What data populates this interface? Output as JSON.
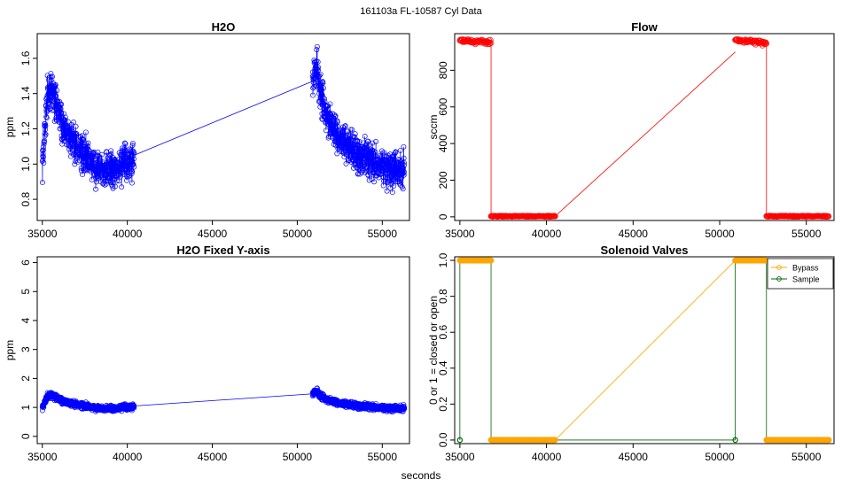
{
  "figure": {
    "suptitle": "161103a   FL-10587  Cyl Data",
    "xlabel": "seconds"
  },
  "colors": {
    "h2o": "#0000ff",
    "flow": "#ff0000",
    "bypass": "#ffa500",
    "sample": "#006400",
    "axis": "#000000"
  },
  "chart_data": [
    {
      "id": "h2o",
      "type": "line",
      "title": "H2O",
      "xlabel": "",
      "ylabel": "ppm",
      "xlim": [
        34700,
        56600
      ],
      "ylim": [
        0.68,
        1.74
      ],
      "x_ticks": [
        35000,
        40000,
        45000,
        50000,
        55000
      ],
      "y_ticks": [
        0.8,
        1.0,
        1.2,
        1.4,
        1.6
      ],
      "y_tick_labels": [
        "0.8",
        "1.0",
        "1.2",
        "1.4",
        "1.6"
      ],
      "series": [
        {
          "name": "H2O",
          "segments": [
            {
              "x_range": [
                35000,
                40400
              ],
              "shape": [
                [
                  35000,
                  0.95
                ],
                [
                  35300,
                  1.42
                ],
                [
                  35600,
                  1.42
                ],
                [
                  36200,
                  1.22
                ],
                [
                  37000,
                  1.1
                ],
                [
                  38000,
                  1.0
                ],
                [
                  39000,
                  0.97
                ],
                [
                  40400,
                  1.02
                ]
              ],
              "noise": 0.2
            },
            {
              "x_range": [
                50900,
                56300
              ],
              "shape": [
                [
                  50900,
                  1.45
                ],
                [
                  51100,
                  1.55
                ],
                [
                  51600,
                  1.3
                ],
                [
                  52500,
                  1.15
                ],
                [
                  53500,
                  1.05
                ],
                [
                  54500,
                  1.0
                ],
                [
                  56300,
                  0.97
                ]
              ],
              "noise": 0.2
            }
          ],
          "bridge": [
            [
              40400,
              1.05
            ],
            [
              50900,
              1.47
            ]
          ]
        }
      ]
    },
    {
      "id": "flow",
      "type": "line",
      "title": "Flow",
      "xlabel": "",
      "ylabel": "sccm",
      "xlim": [
        34700,
        56600
      ],
      "ylim": [
        -20,
        1000
      ],
      "x_ticks": [
        35000,
        40000,
        45000,
        50000,
        55000
      ],
      "y_ticks": [
        0,
        200,
        400,
        600,
        800
      ],
      "y_tick_labels": [
        "0",
        "200",
        "400",
        "600",
        "800"
      ],
      "series": [
        {
          "name": "Flow",
          "segments": [
            {
              "x_range": [
                35000,
                36800
              ],
              "shape": [
                [
                  35000,
                  960
                ],
                [
                  36800,
                  955
                ]
              ],
              "noise": 25
            },
            {
              "x_range": [
                36800,
                40500
              ],
              "shape": [
                [
                  36800,
                  3
                ],
                [
                  40500,
                  3
                ]
              ],
              "noise": 4
            },
            {
              "x_range": [
                50900,
                52700
              ],
              "shape": [
                [
                  50900,
                  965
                ],
                [
                  52700,
                  950
                ]
              ],
              "noise": 25
            },
            {
              "x_range": [
                52700,
                56300
              ],
              "shape": [
                [
                  52700,
                  3
                ],
                [
                  56300,
                  3
                ]
              ],
              "noise": 4
            }
          ],
          "bridge": [
            [
              40500,
              3
            ],
            [
              50900,
              900
            ]
          ],
          "drops": [
            [
              36800,
              955,
              3
            ],
            [
              52700,
              950,
              3
            ]
          ]
        }
      ]
    },
    {
      "id": "h2o-fixed",
      "type": "line",
      "title": "H2O Fixed Y-axis",
      "xlabel": "",
      "ylabel": "ppm",
      "xlim": [
        34700,
        56600
      ],
      "ylim": [
        -0.25,
        6.2
      ],
      "x_ticks": [
        35000,
        40000,
        45000,
        50000,
        55000
      ],
      "y_ticks": [
        0,
        1,
        2,
        3,
        4,
        5,
        6
      ],
      "y_tick_labels": [
        "0",
        "1",
        "2",
        "3",
        "4",
        "5",
        "6"
      ],
      "series": [
        {
          "name": "H2O",
          "segments": [
            {
              "x_range": [
                35000,
                40400
              ],
              "shape": [
                [
                  35000,
                  0.95
                ],
                [
                  35300,
                  1.42
                ],
                [
                  35600,
                  1.42
                ],
                [
                  36200,
                  1.22
                ],
                [
                  37000,
                  1.1
                ],
                [
                  38000,
                  1.0
                ],
                [
                  39000,
                  0.97
                ],
                [
                  40400,
                  1.02
                ]
              ],
              "noise": 0.2
            },
            {
              "x_range": [
                50900,
                56300
              ],
              "shape": [
                [
                  50900,
                  1.45
                ],
                [
                  51100,
                  1.55
                ],
                [
                  51600,
                  1.3
                ],
                [
                  52500,
                  1.15
                ],
                [
                  53500,
                  1.05
                ],
                [
                  54500,
                  1.0
                ],
                [
                  56300,
                  0.97
                ]
              ],
              "noise": 0.2
            }
          ],
          "bridge": [
            [
              40400,
              1.05
            ],
            [
              50900,
              1.47
            ]
          ]
        }
      ]
    },
    {
      "id": "valves",
      "type": "line",
      "title": "Solenoid Valves",
      "xlabel": "",
      "ylabel": "0 or 1 = closed or open",
      "xlim": [
        34700,
        56600
      ],
      "ylim": [
        -0.02,
        1.02
      ],
      "x_ticks": [
        35000,
        40000,
        45000,
        50000,
        55000
      ],
      "y_ticks": [
        0,
        0.2,
        0.4,
        0.6,
        0.8,
        1.0
      ],
      "y_tick_labels": [
        "0.0",
        "0.2",
        "0.4",
        "0.6",
        "0.8",
        "1.0"
      ],
      "legend": {
        "position": "top-right",
        "entries": [
          "Bypass",
          "Sample"
        ]
      },
      "series": [
        {
          "name": "Bypass",
          "on_ranges": [
            [
              35000,
              36800
            ],
            [
              50900,
              52700
            ]
          ],
          "off_ranges": [
            [
              36800,
              40500
            ],
            [
              52700,
              56300
            ]
          ],
          "bridge": [
            [
              40500,
              0
            ],
            [
              50900,
              1
            ]
          ]
        },
        {
          "name": "Sample",
          "points": [
            [
              35000,
              0
            ],
            [
              50900,
              0
            ]
          ],
          "verticals": [
            35000,
            36800,
            50900,
            52700
          ],
          "bridge": [
            [
              36800,
              0
            ],
            [
              50900,
              0
            ]
          ]
        }
      ]
    }
  ]
}
